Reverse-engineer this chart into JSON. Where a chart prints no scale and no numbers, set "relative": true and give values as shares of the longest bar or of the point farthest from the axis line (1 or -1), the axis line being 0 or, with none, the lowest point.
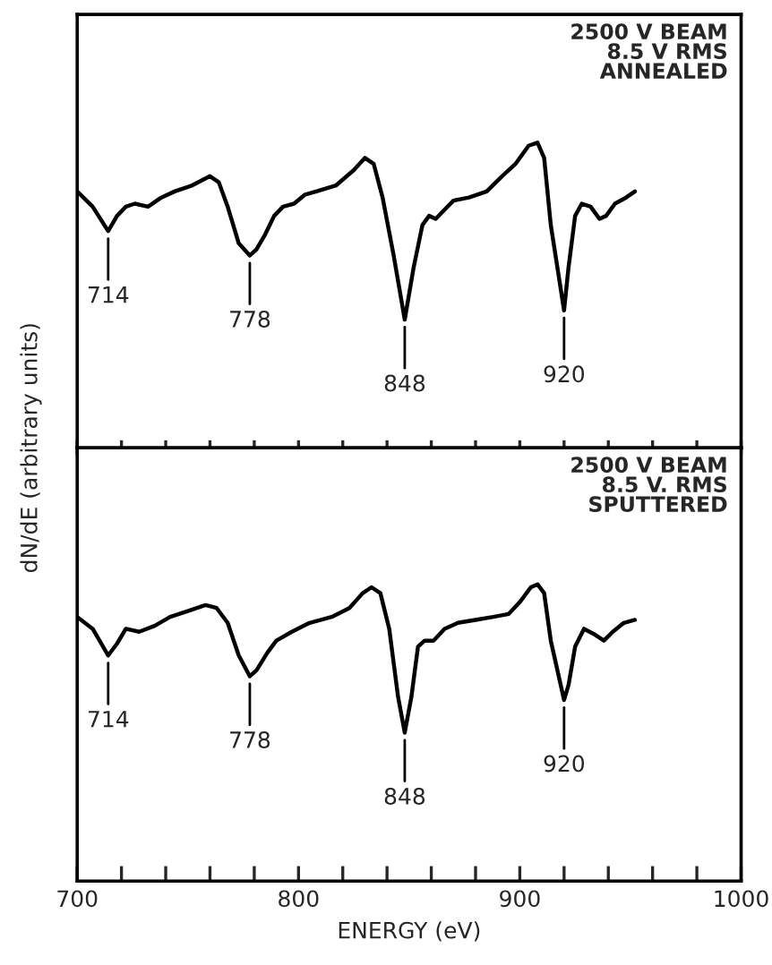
{
  "chart_data": [
    {
      "type": "line",
      "relative": true,
      "ylabel": "dN/dE (arbitrary units)",
      "xlim": [
        700,
        1000
      ],
      "xticks": [
        {
          "value": 700,
          "label": null
        },
        {
          "value": 720,
          "label": null
        },
        {
          "value": 740,
          "label": null
        },
        {
          "value": 760,
          "label": null
        },
        {
          "value": 780,
          "label": null
        },
        {
          "value": 800,
          "label": null
        },
        {
          "value": 820,
          "label": null
        },
        {
          "value": 840,
          "label": null
        },
        {
          "value": 860,
          "label": null
        },
        {
          "value": 880,
          "label": null
        },
        {
          "value": 900,
          "label": null
        },
        {
          "value": 920,
          "label": null
        },
        {
          "value": 940,
          "label": null
        },
        {
          "value": 960,
          "label": null
        },
        {
          "value": 980,
          "label": null
        },
        {
          "value": 1000,
          "label": null
        }
      ],
      "tick_labels": false,
      "grid": false,
      "legend": false,
      "marker": "none",
      "line_style": "solid",
      "series": [
        {
          "color": "#000000",
          "x": [
            700,
            707,
            714,
            718,
            722,
            726,
            732,
            738,
            744,
            752,
            760,
            764,
            768,
            773,
            778,
            781,
            785,
            789,
            793,
            798,
            803,
            808,
            817,
            825,
            830,
            834,
            838,
            843,
            848,
            852,
            856,
            859,
            862,
            866,
            870,
            877,
            885,
            892,
            898,
            904,
            908,
            911,
            914,
            920,
            922,
            925,
            928,
            932,
            936,
            939,
            943,
            948,
            952
          ],
          "values": [
            0.84,
            0.79,
            0.71,
            0.76,
            0.79,
            0.8,
            0.79,
            0.82,
            0.84,
            0.86,
            0.89,
            0.87,
            0.79,
            0.67,
            0.63,
            0.65,
            0.7,
            0.76,
            0.79,
            0.8,
            0.83,
            0.84,
            0.86,
            0.91,
            0.95,
            0.93,
            0.82,
            0.63,
            0.42,
            0.59,
            0.73,
            0.76,
            0.75,
            0.78,
            0.81,
            0.82,
            0.84,
            0.89,
            0.93,
            0.99,
            1.0,
            0.95,
            0.73,
            0.45,
            0.59,
            0.76,
            0.8,
            0.79,
            0.75,
            0.76,
            0.8,
            0.82,
            0.84
          ]
        }
      ],
      "annotations": [
        "2500 V BEAM\n8.5 V RMS\nANNEALED",
        {
          "text": "714",
          "x": 714,
          "y": 0.71
        },
        {
          "text": "778",
          "x": 778,
          "y": 0.63
        },
        {
          "text": "848",
          "x": 848,
          "y": 0.42
        },
        {
          "text": "920",
          "x": 920,
          "y": 0.45
        }
      ]
    },
    {
      "type": "line",
      "relative": true,
      "xlabel": "ENERGY (eV)",
      "xlim": [
        700,
        1000
      ],
      "xticks": [
        700,
        {
          "value": 720,
          "label": null
        },
        {
          "value": 740,
          "label": null
        },
        {
          "value": 760,
          "label": null
        },
        {
          "value": 780,
          "label": null
        },
        800,
        {
          "value": 820,
          "label": null
        },
        {
          "value": 840,
          "label": null
        },
        {
          "value": 860,
          "label": null
        },
        {
          "value": 880,
          "label": null
        },
        900,
        {
          "value": 920,
          "label": null
        },
        {
          "value": 940,
          "label": null
        },
        {
          "value": 960,
          "label": null
        },
        {
          "value": 980,
          "label": null
        },
        1000
      ],
      "tick_labels": "x",
      "grid": false,
      "legend": false,
      "marker": "none",
      "line_style": "solid",
      "series": [
        {
          "color": "#000000",
          "x": [
            700,
            707,
            714,
            718,
            722,
            728,
            735,
            742,
            750,
            758,
            763,
            768,
            773,
            778,
            781,
            786,
            790,
            797,
            805,
            815,
            823,
            829,
            833,
            837,
            841,
            845,
            848,
            851,
            854,
            857,
            861,
            866,
            872,
            880,
            888,
            895,
            900,
            905,
            908,
            911,
            914,
            920,
            922,
            925,
            929,
            934,
            938,
            942,
            947,
            952
          ],
          "values": [
            0.89,
            0.85,
            0.76,
            0.8,
            0.85,
            0.84,
            0.86,
            0.89,
            0.91,
            0.93,
            0.92,
            0.87,
            0.76,
            0.69,
            0.71,
            0.77,
            0.81,
            0.84,
            0.87,
            0.89,
            0.92,
            0.97,
            0.99,
            0.97,
            0.85,
            0.62,
            0.5,
            0.62,
            0.79,
            0.81,
            0.81,
            0.85,
            0.87,
            0.88,
            0.89,
            0.9,
            0.94,
            0.99,
            1.0,
            0.97,
            0.81,
            0.61,
            0.66,
            0.79,
            0.85,
            0.83,
            0.81,
            0.84,
            0.87,
            0.88
          ]
        }
      ],
      "annotations": [
        "2500 V BEAM\n8.5 V. RMS\nSPUTTERED",
        {
          "text": "714",
          "x": 714,
          "y": 0.76
        },
        {
          "text": "778",
          "x": 778,
          "y": 0.69
        },
        {
          "text": "848",
          "x": 848,
          "y": 0.5
        },
        {
          "text": "920",
          "x": 920,
          "y": 0.61
        }
      ]
    }
  ]
}
